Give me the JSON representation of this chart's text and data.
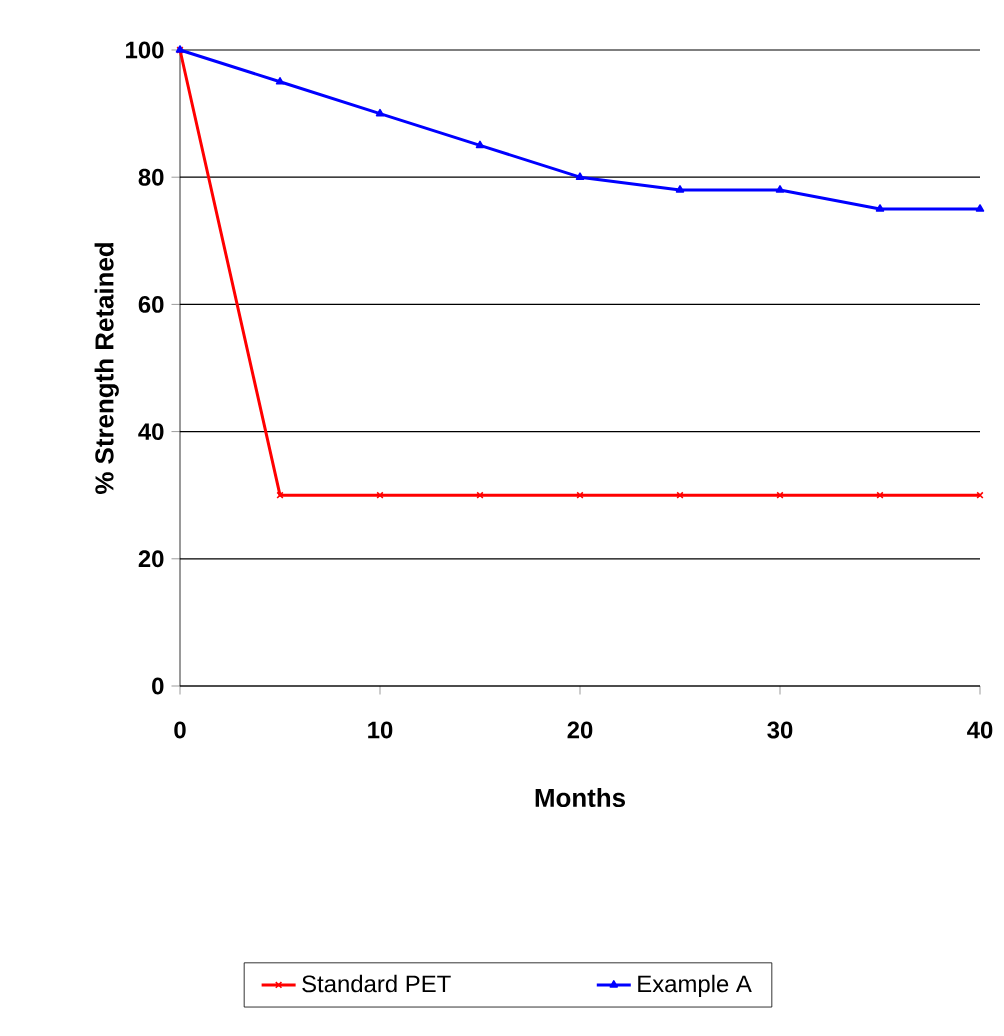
{
  "chart_data": {
    "type": "line",
    "xlabel": "Months",
    "ylabel": "% Strength Retained",
    "x": [
      0,
      5,
      10,
      15,
      20,
      25,
      30,
      35,
      40
    ],
    "series": [
      {
        "name": "Standard PET",
        "color": "#ff0000",
        "marker": "cross",
        "values": [
          100,
          30,
          30,
          30,
          30,
          30,
          30,
          30,
          30
        ]
      },
      {
        "name": "Example A",
        "color": "#0000ff",
        "marker": "triangle",
        "values": [
          100,
          95,
          90,
          85,
          80,
          78,
          78,
          75,
          75
        ]
      }
    ],
    "xlim": [
      0,
      40
    ],
    "xticks": [
      0,
      10,
      20,
      30,
      40
    ],
    "ylim": [
      0,
      100
    ],
    "yticks": [
      0,
      20,
      40,
      60,
      80,
      100
    ],
    "grid": "y",
    "legend": "bottom",
    "line_style": "solid"
  }
}
